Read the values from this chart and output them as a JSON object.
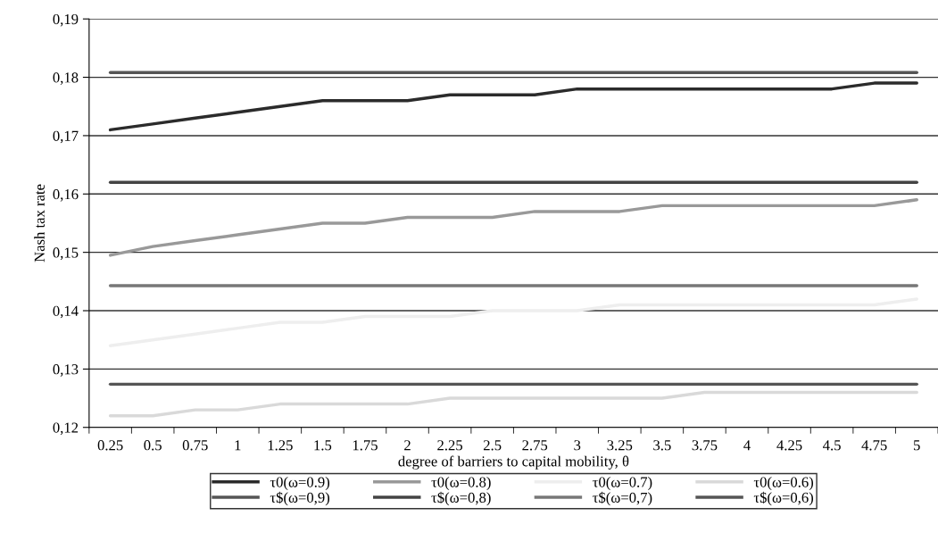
{
  "chart_data": {
    "type": "line",
    "xlabel": "degree of barriers to capital mobility, θ",
    "ylabel": "Nash tax rate",
    "categories": [
      "0.25",
      "0.5",
      "0.75",
      "1",
      "1.25",
      "1.5",
      "1.75",
      "2",
      "2.25",
      "2.5",
      "2.75",
      "3",
      "3.25",
      "3.5",
      "3.75",
      "4",
      "4.25",
      "4.5",
      "4.75",
      "5"
    ],
    "ylim": [
      0.12,
      0.19
    ],
    "yticks": [
      {
        "value": 0.12,
        "label": "0,12"
      },
      {
        "value": 0.13,
        "label": "0,13"
      },
      {
        "value": 0.14,
        "label": "0,14"
      },
      {
        "value": 0.15,
        "label": "0,15"
      },
      {
        "value": 0.16,
        "label": "0,16"
      },
      {
        "value": 0.17,
        "label": "0,17"
      },
      {
        "value": 0.18,
        "label": "0,18"
      },
      {
        "value": 0.19,
        "label": "0,19"
      }
    ],
    "grid": "y",
    "legend": "bottom",
    "marker": "none",
    "line_style": "solid",
    "series": [
      {
        "name": "τ0(ω=0.9)",
        "color": "#2b2b2b",
        "values": [
          0.171,
          0.172,
          0.173,
          0.174,
          0.175,
          0.176,
          0.176,
          0.176,
          0.177,
          0.177,
          0.177,
          0.178,
          0.178,
          0.178,
          0.178,
          0.178,
          0.178,
          0.178,
          0.179,
          0.179
        ]
      },
      {
        "name": "τ$(ω=0,9)",
        "color": "#555555",
        "values": [
          0.1808,
          0.1808,
          0.1808,
          0.1808,
          0.1808,
          0.1808,
          0.1808,
          0.1808,
          0.1808,
          0.1808,
          0.1808,
          0.1808,
          0.1808,
          0.1808,
          0.1808,
          0.1808,
          0.1808,
          0.1808,
          0.1808,
          0.1808
        ]
      },
      {
        "name": "τ0(ω=0.8)",
        "color": "#999999",
        "values": [
          0.1495,
          0.151,
          0.152,
          0.153,
          0.154,
          0.155,
          0.155,
          0.156,
          0.156,
          0.156,
          0.157,
          0.157,
          0.157,
          0.158,
          0.158,
          0.158,
          0.158,
          0.158,
          0.158,
          0.159
        ]
      },
      {
        "name": "τ$(ω=0,8)",
        "color": "#444444",
        "values": [
          0.162,
          0.162,
          0.162,
          0.162,
          0.162,
          0.162,
          0.162,
          0.162,
          0.162,
          0.162,
          0.162,
          0.162,
          0.162,
          0.162,
          0.162,
          0.162,
          0.162,
          0.162,
          0.162,
          0.162
        ]
      },
      {
        "name": "τ0(ω=0.7)",
        "color": "#eeeeee",
        "values": [
          0.134,
          0.135,
          0.136,
          0.137,
          0.138,
          0.138,
          0.139,
          0.139,
          0.139,
          0.14,
          0.14,
          0.14,
          0.141,
          0.141,
          0.141,
          0.141,
          0.141,
          0.141,
          0.141,
          0.142
        ]
      },
      {
        "name": "τ$(ω=0,7)",
        "color": "#777777",
        "values": [
          0.1443,
          0.1443,
          0.1443,
          0.1443,
          0.1443,
          0.1443,
          0.1443,
          0.1443,
          0.1443,
          0.1443,
          0.1443,
          0.1443,
          0.1443,
          0.1443,
          0.1443,
          0.1443,
          0.1443,
          0.1443,
          0.1443,
          0.1443
        ]
      },
      {
        "name": "τ0(ω=0.6)",
        "color": "#d9d9d9",
        "values": [
          0.122,
          0.122,
          0.123,
          0.123,
          0.124,
          0.124,
          0.124,
          0.124,
          0.125,
          0.125,
          0.125,
          0.125,
          0.125,
          0.125,
          0.126,
          0.126,
          0.126,
          0.126,
          0.126,
          0.126
        ]
      },
      {
        "name": "τ$(ω=0,6)",
        "color": "#555555",
        "values": [
          0.1274,
          0.1274,
          0.1274,
          0.1274,
          0.1274,
          0.1274,
          0.1274,
          0.1274,
          0.1274,
          0.1274,
          0.1274,
          0.1274,
          0.1274,
          0.1274,
          0.1274,
          0.1274,
          0.1274,
          0.1274,
          0.1274,
          0.1274
        ]
      }
    ]
  }
}
